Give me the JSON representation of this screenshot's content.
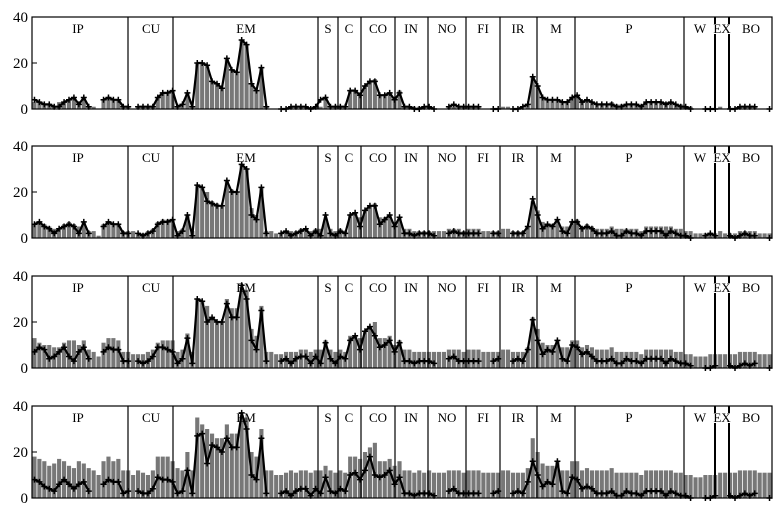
{
  "chart_data": [
    {
      "type": "bar",
      "ylim": [
        0,
        40
      ],
      "yticks": [
        0,
        20,
        40
      ],
      "segments": [
        "IP",
        "CU",
        "EM",
        "S",
        "C",
        "CO",
        "IN",
        "NO",
        "FI",
        "IR",
        "M",
        "P",
        "W",
        "EX",
        "BO"
      ],
      "bars": [
        3,
        3,
        2,
        2,
        1,
        3,
        3,
        4,
        5,
        3,
        5,
        1,
        1,
        0,
        4,
        5,
        4,
        4,
        1,
        1,
        0,
        1,
        1,
        1,
        1,
        5,
        7,
        7,
        8,
        1,
        2,
        7,
        1,
        20,
        20,
        19,
        12,
        11,
        9,
        22,
        17,
        16,
        30,
        28,
        11,
        8,
        18,
        1,
        0,
        0,
        0,
        0,
        1,
        1,
        1,
        1,
        0,
        1,
        1,
        5,
        1,
        1,
        1,
        1,
        8,
        8,
        6,
        10,
        12,
        13,
        6,
        6,
        7,
        5,
        8,
        1,
        1,
        1,
        1,
        1,
        1,
        0,
        0,
        0,
        1,
        1,
        1,
        1,
        1,
        1,
        1,
        0,
        0,
        0,
        0,
        1,
        1,
        0,
        0,
        0,
        2,
        14,
        10,
        5,
        4,
        4,
        4,
        3,
        3,
        5,
        6,
        3,
        4,
        3,
        2,
        2,
        2,
        3,
        2,
        2,
        2,
        2,
        2,
        1,
        3,
        3,
        3,
        3,
        3,
        3,
        2,
        2,
        1,
        1,
        0,
        0,
        0,
        0,
        0,
        1,
        0,
        0,
        0,
        1,
        1,
        1,
        1,
        0,
        0,
        0
      ],
      "line": [
        4,
        3,
        2,
        2,
        1,
        1,
        3,
        4,
        5,
        2,
        5,
        1,
        null,
        null,
        4,
        5,
        4,
        4,
        1,
        1,
        null,
        1,
        1,
        1,
        1,
        5,
        7,
        7,
        8,
        1,
        2,
        7,
        1,
        20,
        20,
        19,
        12,
        11,
        9,
        22,
        17,
        16,
        30,
        28,
        11,
        8,
        18,
        1,
        null,
        null,
        0,
        0,
        1,
        1,
        1,
        1,
        0,
        1,
        4,
        5,
        1,
        1,
        1,
        1,
        8,
        8,
        6,
        10,
        12,
        12,
        6,
        6,
        7,
        4,
        7,
        1,
        1,
        0,
        0,
        1,
        1,
        0,
        null,
        null,
        1,
        2,
        1,
        1,
        1,
        1,
        1,
        null,
        null,
        0,
        0,
        null,
        null,
        0,
        0,
        1,
        2,
        14,
        10,
        5,
        4,
        4,
        4,
        3,
        3,
        5,
        6,
        3,
        4,
        3,
        2,
        2,
        2,
        2,
        1,
        1,
        2,
        2,
        2,
        1,
        3,
        3,
        3,
        3,
        2,
        3,
        2,
        1,
        1,
        0,
        null,
        null,
        0,
        0,
        0,
        null,
        null,
        0,
        0,
        1,
        1,
        1,
        1,
        null,
        null,
        0
      ]
    },
    {
      "type": "bar",
      "ylim": [
        0,
        40
      ],
      "yticks": [
        0,
        20,
        40
      ],
      "segments": [
        "IP",
        "CU",
        "EM",
        "S",
        "C",
        "CO",
        "IN",
        "NO",
        "FI",
        "IR",
        "M",
        "P",
        "W",
        "EX",
        "BO"
      ],
      "bars": [
        6,
        7,
        6,
        5,
        4,
        4,
        6,
        7,
        6,
        5,
        7,
        3,
        3,
        1,
        6,
        7,
        6,
        6,
        3,
        3,
        3,
        2,
        2,
        3,
        4,
        7,
        8,
        8,
        8,
        3,
        4,
        10,
        3,
        23,
        22,
        20,
        16,
        15,
        14,
        25,
        21,
        20,
        32,
        30,
        13,
        10,
        22,
        3,
        3,
        2,
        2,
        3,
        3,
        3,
        4,
        4,
        3,
        4,
        4,
        8,
        4,
        3,
        4,
        3,
        10,
        11,
        9,
        12,
        14,
        15,
        9,
        9,
        10,
        7,
        9,
        4,
        4,
        3,
        3,
        3,
        3,
        3,
        3,
        3,
        4,
        4,
        4,
        3,
        4,
        4,
        4,
        3,
        3,
        3,
        3,
        4,
        4,
        3,
        3,
        3,
        5,
        16,
        12,
        7,
        6,
        6,
        7,
        5,
        5,
        7,
        8,
        5,
        6,
        5,
        4,
        4,
        4,
        5,
        4,
        4,
        4,
        4,
        4,
        3,
        5,
        5,
        5,
        5,
        5,
        5,
        4,
        4,
        3,
        3,
        2,
        2,
        2,
        2,
        2,
        3,
        2,
        2,
        2,
        3,
        3,
        3,
        3,
        2,
        2,
        2
      ],
      "line": [
        6,
        7,
        5,
        4,
        2,
        4,
        5,
        6,
        5,
        2,
        7,
        2,
        null,
        null,
        5,
        7,
        6,
        6,
        2,
        2,
        null,
        2,
        1,
        2,
        3,
        6,
        7,
        7,
        8,
        1,
        3,
        10,
        1,
        23,
        22,
        16,
        15,
        14,
        14,
        25,
        20,
        20,
        32,
        30,
        10,
        8,
        22,
        2,
        null,
        null,
        2,
        3,
        1,
        2,
        3,
        4,
        1,
        3,
        1,
        10,
        2,
        1,
        3,
        2,
        10,
        11,
        5,
        12,
        14,
        14,
        6,
        8,
        10,
        5,
        9,
        2,
        2,
        1,
        2,
        2,
        2,
        1,
        null,
        null,
        2,
        3,
        2,
        2,
        2,
        2,
        2,
        null,
        null,
        2,
        2,
        null,
        null,
        2,
        2,
        2,
        5,
        17,
        10,
        4,
        6,
        5,
        8,
        3,
        2,
        7,
        7,
        4,
        5,
        4,
        2,
        2,
        2,
        3,
        1,
        1,
        3,
        2,
        2,
        1,
        3,
        3,
        3,
        3,
        1,
        3,
        2,
        1,
        1,
        0,
        null,
        null,
        1,
        2,
        1,
        null,
        null,
        1,
        0,
        1,
        2,
        1,
        1,
        null,
        null,
        0
      ]
    },
    {
      "type": "bar",
      "ylim": [
        0,
        40
      ],
      "yticks": [
        0,
        20,
        40
      ],
      "segments": [
        "IP",
        "CU",
        "EM",
        "S",
        "C",
        "CO",
        "IN",
        "NO",
        "FI",
        "IR",
        "M",
        "P",
        "W",
        "EX",
        "BO"
      ],
      "bars": [
        13,
        11,
        10,
        10,
        9,
        9,
        11,
        12,
        12,
        10,
        12,
        8,
        7,
        5,
        11,
        13,
        13,
        12,
        7,
        7,
        6,
        6,
        6,
        7,
        8,
        11,
        12,
        12,
        12,
        7,
        8,
        15,
        7,
        30,
        29,
        27,
        22,
        20,
        20,
        30,
        26,
        26,
        35,
        34,
        17,
        14,
        27,
        7,
        7,
        6,
        6,
        7,
        7,
        7,
        8,
        8,
        7,
        8,
        8,
        12,
        8,
        7,
        8,
        7,
        14,
        14,
        13,
        16,
        18,
        20,
        13,
        13,
        14,
        10,
        12,
        8,
        8,
        7,
        7,
        7,
        7,
        7,
        7,
        7,
        8,
        8,
        8,
        7,
        8,
        8,
        8,
        7,
        7,
        7,
        7,
        8,
        8,
        7,
        7,
        7,
        9,
        22,
        17,
        11,
        10,
        10,
        12,
        9,
        9,
        12,
        12,
        9,
        10,
        9,
        8,
        8,
        8,
        9,
        7,
        7,
        7,
        7,
        7,
        6,
        8,
        8,
        8,
        8,
        8,
        8,
        7,
        7,
        6,
        6,
        5,
        5,
        5,
        6,
        6,
        6,
        6,
        6,
        6,
        7,
        7,
        7,
        7,
        6,
        6,
        6
      ],
      "line": [
        7,
        9,
        8,
        4,
        5,
        7,
        9,
        5,
        3,
        7,
        9,
        4,
        null,
        null,
        7,
        9,
        8,
        8,
        3,
        3,
        null,
        3,
        2,
        3,
        5,
        9,
        9,
        8,
        7,
        2,
        4,
        13,
        2,
        30,
        29,
        20,
        22,
        20,
        20,
        28,
        22,
        22,
        36,
        30,
        12,
        8,
        25,
        3,
        null,
        null,
        3,
        4,
        2,
        4,
        5,
        5,
        2,
        5,
        2,
        11,
        4,
        2,
        5,
        4,
        12,
        14,
        8,
        16,
        18,
        14,
        9,
        10,
        12,
        7,
        11,
        3,
        3,
        2,
        3,
        3,
        3,
        2,
        null,
        null,
        4,
        5,
        3,
        3,
        3,
        3,
        3,
        null,
        null,
        3,
        4,
        null,
        null,
        3,
        4,
        3,
        8,
        21,
        12,
        6,
        8,
        7,
        12,
        4,
        3,
        10,
        9,
        6,
        7,
        5,
        3,
        3,
        3,
        4,
        2,
        2,
        4,
        3,
        3,
        2,
        4,
        4,
        4,
        4,
        2,
        4,
        3,
        2,
        2,
        1,
        null,
        null,
        0,
        0,
        1,
        null,
        null,
        1,
        0,
        1,
        2,
        1,
        2,
        null,
        null,
        0
      ]
    },
    {
      "type": "bar",
      "ylim": [
        0,
        40
      ],
      "yticks": [
        0,
        20,
        40
      ],
      "segments": [
        "IP",
        "CU",
        "EM",
        "S",
        "C",
        "CO",
        "IN",
        "NO",
        "FI",
        "IR",
        "M",
        "P",
        "W",
        "EX",
        "BO"
      ],
      "bars": [
        18,
        17,
        16,
        14,
        15,
        17,
        16,
        14,
        13,
        16,
        15,
        13,
        12,
        10,
        16,
        18,
        16,
        17,
        12,
        12,
        10,
        12,
        11,
        10,
        12,
        18,
        18,
        18,
        16,
        13,
        12,
        20,
        12,
        35,
        32,
        30,
        28,
        26,
        26,
        32,
        28,
        28,
        36,
        35,
        20,
        18,
        30,
        12,
        12,
        10,
        10,
        11,
        12,
        11,
        12,
        12,
        11,
        12,
        12,
        14,
        12,
        11,
        12,
        11,
        18,
        18,
        17,
        20,
        22,
        24,
        16,
        16,
        17,
        14,
        16,
        12,
        12,
        11,
        12,
        11,
        12,
        11,
        11,
        11,
        12,
        12,
        12,
        11,
        12,
        12,
        12,
        11,
        11,
        11,
        11,
        12,
        12,
        11,
        11,
        11,
        13,
        26,
        20,
        15,
        14,
        14,
        16,
        12,
        12,
        16,
        16,
        12,
        13,
        12,
        12,
        12,
        12,
        13,
        11,
        11,
        11,
        11,
        11,
        10,
        12,
        12,
        12,
        12,
        12,
        12,
        11,
        11,
        10,
        10,
        9,
        9,
        10,
        10,
        10,
        11,
        11,
        11,
        11,
        12,
        12,
        12,
        12,
        11,
        11,
        11
      ],
      "line": [
        8,
        7,
        5,
        4,
        3,
        6,
        8,
        6,
        4,
        6,
        7,
        3,
        null,
        null,
        6,
        8,
        7,
        7,
        2,
        3,
        null,
        3,
        2,
        2,
        4,
        9,
        8,
        8,
        7,
        2,
        3,
        12,
        2,
        27,
        28,
        15,
        23,
        22,
        20,
        26,
        22,
        22,
        37,
        30,
        10,
        8,
        26,
        2,
        null,
        null,
        2,
        3,
        1,
        3,
        4,
        4,
        1,
        4,
        2,
        9,
        3,
        2,
        4,
        3,
        10,
        11,
        8,
        12,
        18,
        10,
        9,
        10,
        12,
        6,
        9,
        2,
        2,
        1,
        2,
        2,
        2,
        1,
        null,
        null,
        3,
        4,
        2,
        2,
        2,
        2,
        2,
        null,
        null,
        2,
        3,
        null,
        null,
        2,
        3,
        2,
        7,
        16,
        10,
        5,
        7,
        6,
        16,
        3,
        2,
        9,
        8,
        4,
        5,
        4,
        2,
        2,
        2,
        3,
        1,
        1,
        3,
        2,
        2,
        1,
        3,
        3,
        3,
        3,
        1,
        3,
        2,
        1,
        1,
        0,
        null,
        null,
        0,
        0,
        1,
        null,
        null,
        1,
        0,
        1,
        2,
        1,
        2,
        null,
        null,
        0
      ]
    }
  ]
}
